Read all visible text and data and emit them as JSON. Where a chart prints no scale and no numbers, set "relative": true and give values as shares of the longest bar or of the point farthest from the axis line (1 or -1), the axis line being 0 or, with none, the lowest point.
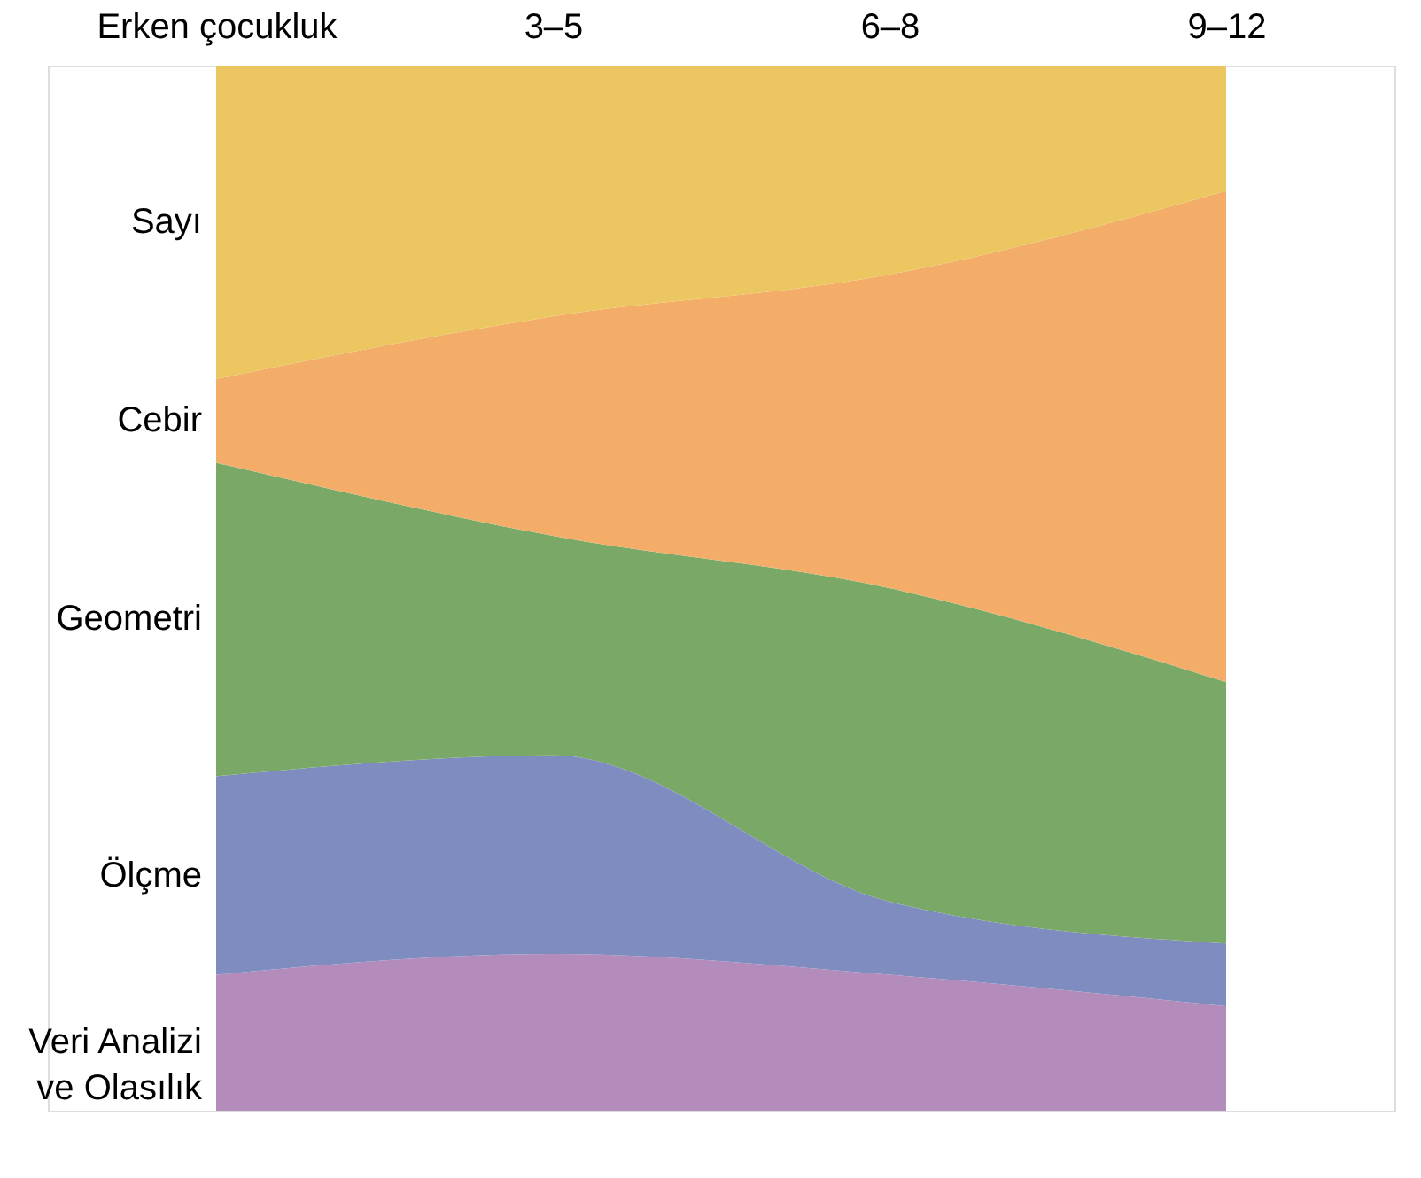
{
  "chart_data": {
    "type": "area",
    "relative": true,
    "stacked": true,
    "legend": false,
    "grid": false,
    "categories": [
      "Erken çocukluk",
      "3–5",
      "6–8",
      "9–12"
    ],
    "series": [
      {
        "name": "Veri Analizi ve Olasılık",
        "color": "#b48cbc",
        "values": [
          0.13,
          0.15,
          0.13,
          0.1
        ]
      },
      {
        "name": "Ölçme",
        "color": "#7f8cc0",
        "values": [
          0.19,
          0.19,
          0.07,
          0.06
        ]
      },
      {
        "name": "Geometri",
        "color": "#7aa866",
        "values": [
          0.3,
          0.21,
          0.3,
          0.25
        ]
      },
      {
        "name": "Cebir",
        "color": "#f3ad68",
        "values": [
          0.08,
          0.21,
          0.3,
          0.47
        ]
      },
      {
        "name": "Sayı",
        "color": "#ecc660",
        "values": [
          0.3,
          0.24,
          0.2,
          0.12
        ]
      }
    ]
  }
}
